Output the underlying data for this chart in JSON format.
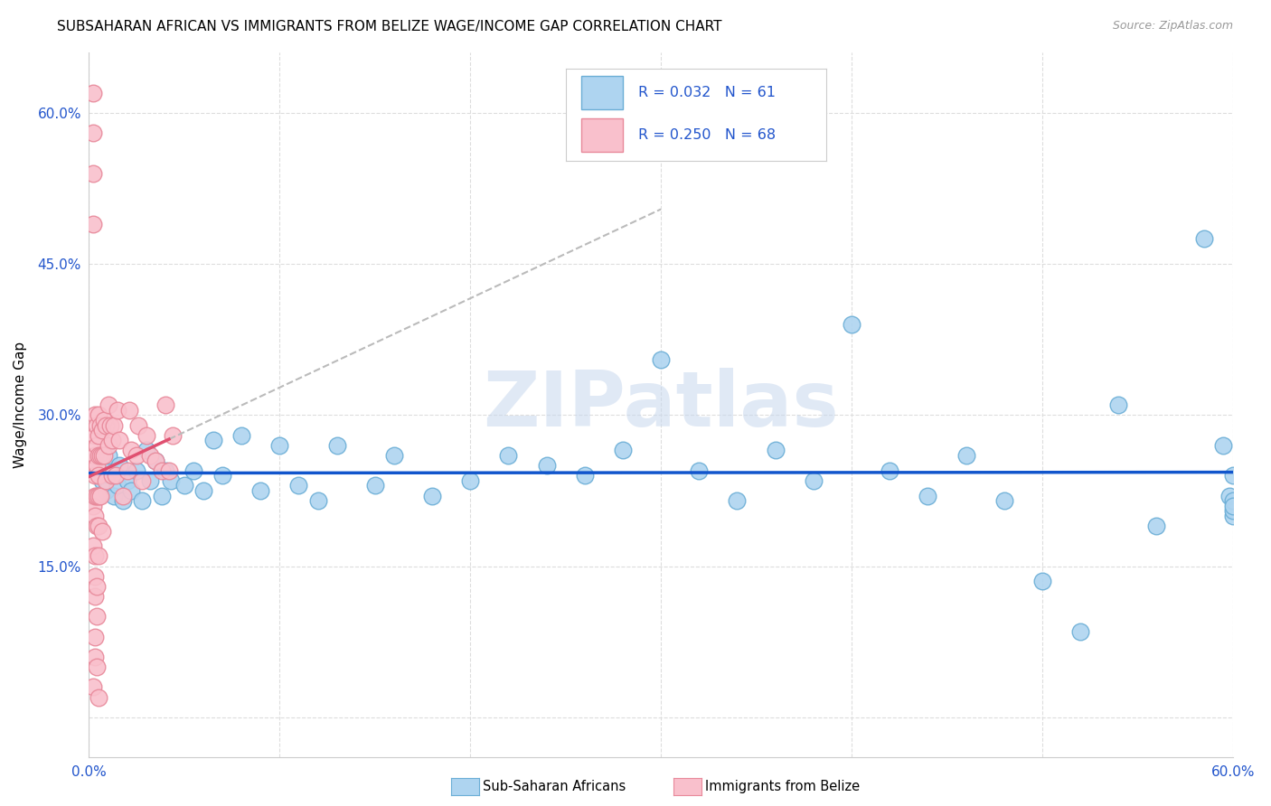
{
  "title": "SUBSAHARAN AFRICAN VS IMMIGRANTS FROM BELIZE WAGE/INCOME GAP CORRELATION CHART",
  "source": "Source: ZipAtlas.com",
  "ylabel": "Wage/Income Gap",
  "xlim": [
    0.0,
    0.6
  ],
  "ylim": [
    -0.04,
    0.66
  ],
  "xticks": [
    0.0,
    0.1,
    0.2,
    0.3,
    0.4,
    0.5,
    0.6
  ],
  "xticklabels": [
    "0.0%",
    "",
    "",
    "",
    "",
    "",
    "60.0%"
  ],
  "yticks": [
    0.0,
    0.15,
    0.3,
    0.45,
    0.6
  ],
  "yticklabels": [
    "",
    "15.0%",
    "30.0%",
    "45.0%",
    "60.0%"
  ],
  "blue_face": "#aed4f0",
  "blue_edge": "#6baed6",
  "pink_face": "#f9c0cc",
  "pink_edge": "#e8899a",
  "trend_blue": "#1155cc",
  "trend_pink": "#e05070",
  "trend_gray": "#bbbbbb",
  "tick_color": "#2255cc",
  "legend_text_color": "#2255cc",
  "grid_color": "#dddddd",
  "watermark": "ZIPatlas",
  "watermark_color": "#c8d8ee",
  "legend_label_blue": "Sub-Saharan Africans",
  "legend_label_pink": "Immigrants from Belize",
  "blue_x": [
    0.005,
    0.007,
    0.008,
    0.009,
    0.01,
    0.012,
    0.013,
    0.015,
    0.016,
    0.018,
    0.02,
    0.022,
    0.025,
    0.028,
    0.03,
    0.032,
    0.035,
    0.038,
    0.04,
    0.043,
    0.05,
    0.055,
    0.06,
    0.065,
    0.07,
    0.08,
    0.09,
    0.1,
    0.11,
    0.12,
    0.13,
    0.15,
    0.16,
    0.18,
    0.2,
    0.22,
    0.24,
    0.26,
    0.28,
    0.3,
    0.32,
    0.34,
    0.36,
    0.38,
    0.4,
    0.42,
    0.44,
    0.46,
    0.48,
    0.5,
    0.52,
    0.54,
    0.56,
    0.585,
    0.595,
    0.598,
    0.6,
    0.6,
    0.6,
    0.6,
    0.6
  ],
  "blue_y": [
    0.245,
    0.235,
    0.25,
    0.225,
    0.26,
    0.24,
    0.22,
    0.23,
    0.25,
    0.215,
    0.235,
    0.225,
    0.245,
    0.215,
    0.265,
    0.235,
    0.255,
    0.22,
    0.245,
    0.235,
    0.23,
    0.245,
    0.225,
    0.275,
    0.24,
    0.28,
    0.225,
    0.27,
    0.23,
    0.215,
    0.27,
    0.23,
    0.26,
    0.22,
    0.235,
    0.26,
    0.25,
    0.24,
    0.265,
    0.355,
    0.245,
    0.215,
    0.265,
    0.235,
    0.39,
    0.245,
    0.22,
    0.26,
    0.215,
    0.135,
    0.085,
    0.31,
    0.19,
    0.475,
    0.27,
    0.22,
    0.24,
    0.2,
    0.205,
    0.215,
    0.21
  ],
  "pink_x": [
    0.002,
    0.002,
    0.002,
    0.002,
    0.002,
    0.002,
    0.002,
    0.002,
    0.003,
    0.003,
    0.003,
    0.003,
    0.003,
    0.003,
    0.003,
    0.003,
    0.003,
    0.003,
    0.003,
    0.004,
    0.004,
    0.004,
    0.004,
    0.004,
    0.004,
    0.004,
    0.004,
    0.005,
    0.005,
    0.005,
    0.005,
    0.005,
    0.005,
    0.005,
    0.005,
    0.006,
    0.006,
    0.006,
    0.007,
    0.007,
    0.007,
    0.008,
    0.008,
    0.009,
    0.009,
    0.01,
    0.01,
    0.011,
    0.012,
    0.012,
    0.013,
    0.014,
    0.015,
    0.016,
    0.018,
    0.02,
    0.021,
    0.022,
    0.025,
    0.026,
    0.028,
    0.03,
    0.032,
    0.035,
    0.038,
    0.04,
    0.042,
    0.044
  ],
  "pink_y": [
    0.62,
    0.58,
    0.54,
    0.49,
    0.25,
    0.21,
    0.17,
    0.03,
    0.3,
    0.28,
    0.26,
    0.24,
    0.22,
    0.2,
    0.16,
    0.14,
    0.12,
    0.08,
    0.06,
    0.29,
    0.27,
    0.25,
    0.22,
    0.19,
    0.13,
    0.1,
    0.05,
    0.3,
    0.28,
    0.26,
    0.24,
    0.22,
    0.19,
    0.16,
    0.02,
    0.29,
    0.26,
    0.22,
    0.285,
    0.26,
    0.185,
    0.295,
    0.26,
    0.29,
    0.235,
    0.31,
    0.27,
    0.29,
    0.275,
    0.24,
    0.29,
    0.24,
    0.305,
    0.275,
    0.22,
    0.245,
    0.305,
    0.265,
    0.26,
    0.29,
    0.235,
    0.28,
    0.26,
    0.255,
    0.245,
    0.31,
    0.245,
    0.28
  ]
}
